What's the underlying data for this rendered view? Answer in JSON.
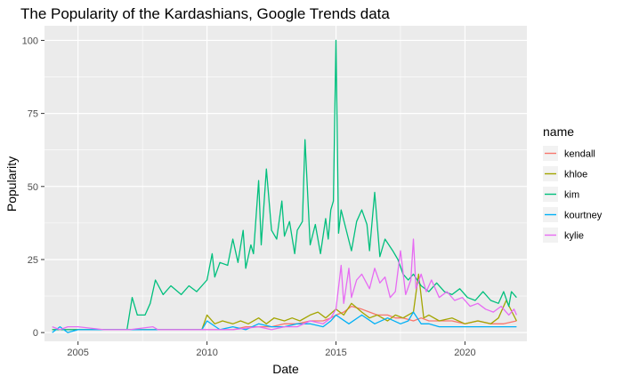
{
  "chart_data": {
    "type": "line",
    "title": "The Popularity of the Kardashians, Google Trends data",
    "xlabel": "Date",
    "ylabel": "Popularity",
    "xlim": [
      2003.7,
      2022.4
    ],
    "ylim": [
      -3,
      105
    ],
    "x_ticks": [
      2005,
      2010,
      2015,
      2020
    ],
    "y_ticks": [
      0,
      25,
      50,
      75,
      100
    ],
    "grid": true,
    "legend": {
      "title": "name",
      "position": "right"
    },
    "colors": {
      "panel_bg": "#ebebeb",
      "grid": "#ffffff",
      "kendall": "#F8766D",
      "khloe": "#A3A500",
      "kim": "#00BF7D",
      "kourtney": "#00B0F6",
      "kylie": "#E76BF3"
    },
    "series": [
      {
        "name": "kendall",
        "color": "#F8766D",
        "x": [
          2004.0,
          2004.5,
          2005.0,
          2006.0,
          2007.0,
          2008.0,
          2009.0,
          2010.0,
          2010.5,
          2011.0,
          2011.5,
          2012.0,
          2012.5,
          2013.0,
          2013.5,
          2014.0,
          2014.5,
          2014.8,
          2015.0,
          2015.3,
          2015.6,
          2016.0,
          2016.3,
          2016.6,
          2017.0,
          2017.3,
          2017.6,
          2018.0,
          2018.3,
          2018.6,
          2019.0,
          2019.5,
          2020.0,
          2020.5,
          2021.0,
          2021.5,
          2022.0
        ],
        "y": [
          1,
          1,
          1,
          1,
          1,
          1,
          1,
          1,
          1,
          1,
          2,
          2,
          2,
          3,
          3,
          4,
          4,
          5,
          6,
          7,
          9,
          8,
          7,
          6,
          6,
          5,
          5,
          4,
          5,
          4,
          4,
          4,
          3,
          4,
          3,
          3,
          4
        ]
      },
      {
        "name": "khloe",
        "color": "#A3A500",
        "x": [
          2004.0,
          2004.5,
          2005.0,
          2006.0,
          2007.0,
          2008.0,
          2009.0,
          2009.8,
          2010.0,
          2010.3,
          2010.6,
          2011.0,
          2011.3,
          2011.6,
          2012.0,
          2012.3,
          2012.6,
          2013.0,
          2013.3,
          2013.6,
          2014.0,
          2014.3,
          2014.6,
          2015.0,
          2015.3,
          2015.6,
          2016.0,
          2016.3,
          2016.6,
          2017.0,
          2017.3,
          2017.6,
          2018.0,
          2018.2,
          2018.4,
          2018.6,
          2019.0,
          2019.5,
          2020.0,
          2020.5,
          2021.0,
          2021.3,
          2021.6,
          2022.0
        ],
        "y": [
          1,
          1,
          1,
          1,
          1,
          1,
          1,
          1,
          6,
          3,
          4,
          3,
          4,
          3,
          5,
          3,
          5,
          4,
          5,
          4,
          6,
          7,
          5,
          8,
          6,
          10,
          7,
          5,
          6,
          4,
          6,
          5,
          7,
          20,
          5,
          6,
          4,
          5,
          3,
          4,
          3,
          5,
          11,
          4
        ]
      },
      {
        "name": "kim",
        "color": "#00BF7D",
        "x": [
          2004.0,
          2004.5,
          2005.0,
          2006.0,
          2006.9,
          2007.1,
          2007.3,
          2007.6,
          2007.8,
          2008.0,
          2008.3,
          2008.6,
          2009.0,
          2009.3,
          2009.6,
          2010.0,
          2010.2,
          2010.3,
          2010.5,
          2010.8,
          2011.0,
          2011.2,
          2011.4,
          2011.5,
          2011.7,
          2011.8,
          2012.0,
          2012.1,
          2012.3,
          2012.5,
          2012.7,
          2012.9,
          2013.0,
          2013.2,
          2013.4,
          2013.5,
          2013.7,
          2013.8,
          2014.0,
          2014.2,
          2014.4,
          2014.6,
          2014.7,
          2014.8,
          2014.9,
          2015.0,
          2015.1,
          2015.2,
          2015.4,
          2015.6,
          2015.8,
          2016.0,
          2016.2,
          2016.3,
          2016.5,
          2016.7,
          2016.9,
          2017.2,
          2017.4,
          2017.6,
          2017.8,
          2018.0,
          2018.3,
          2018.6,
          2018.9,
          2019.2,
          2019.5,
          2019.8,
          2020.1,
          2020.4,
          2020.7,
          2021.0,
          2021.3,
          2021.5,
          2021.7,
          2021.8,
          2022.0
        ],
        "y": [
          1,
          1,
          1,
          1,
          1,
          12,
          6,
          6,
          10,
          18,
          13,
          16,
          13,
          16,
          14,
          18,
          27,
          19,
          24,
          23,
          32,
          24,
          35,
          22,
          30,
          27,
          52,
          30,
          56,
          35,
          32,
          45,
          33,
          38,
          27,
          35,
          38,
          66,
          30,
          37,
          27,
          39,
          32,
          42,
          45,
          100,
          34,
          42,
          35,
          28,
          38,
          42,
          37,
          28,
          48,
          26,
          32,
          28,
          25,
          20,
          18,
          20,
          16,
          14,
          17,
          14,
          13,
          15,
          12,
          11,
          14,
          11,
          10,
          14,
          9,
          14,
          12
        ]
      },
      {
        "name": "kourtney",
        "color": "#00B0F6",
        "x": [
          2004.0,
          2004.3,
          2004.6,
          2005.0,
          2006.0,
          2007.0,
          2008.0,
          2009.0,
          2009.8,
          2010.0,
          2010.5,
          2011.0,
          2011.5,
          2012.0,
          2012.5,
          2013.0,
          2013.5,
          2014.0,
          2014.5,
          2014.8,
          2015.0,
          2015.5,
          2016.0,
          2016.5,
          2017.0,
          2017.5,
          2017.8,
          2018.0,
          2018.3,
          2018.6,
          2019.0,
          2019.5,
          2020.0,
          2020.5,
          2021.0,
          2021.5,
          2022.0
        ],
        "y": [
          0,
          2,
          0,
          1,
          1,
          1,
          1,
          1,
          1,
          4,
          1,
          2,
          1,
          3,
          2,
          2,
          3,
          3,
          2,
          4,
          6,
          3,
          6,
          3,
          5,
          3,
          4,
          7,
          3,
          3,
          2,
          2,
          2,
          2,
          2,
          2,
          2
        ]
      },
      {
        "name": "kylie",
        "color": "#E76BF3",
        "x": [
          2004.0,
          2004.3,
          2004.6,
          2005.0,
          2006.0,
          2007.0,
          2007.9,
          2008.1,
          2009.0,
          2010.0,
          2011.0,
          2012.0,
          2012.5,
          2013.0,
          2013.5,
          2014.0,
          2014.5,
          2014.8,
          2015.0,
          2015.2,
          2015.3,
          2015.5,
          2015.6,
          2015.8,
          2016.0,
          2016.3,
          2016.5,
          2016.7,
          2016.9,
          2017.1,
          2017.3,
          2017.5,
          2017.7,
          2017.9,
          2018.0,
          2018.1,
          2018.3,
          2018.5,
          2018.7,
          2019.0,
          2019.3,
          2019.6,
          2019.9,
          2020.2,
          2020.5,
          2020.8,
          2021.1,
          2021.4,
          2021.7,
          2021.9,
          2022.0
        ],
        "y": [
          2,
          1,
          2,
          2,
          1,
          1,
          2,
          1,
          1,
          1,
          1,
          2,
          1,
          2,
          2,
          4,
          3,
          5,
          8,
          23,
          10,
          22,
          12,
          18,
          20,
          15,
          22,
          17,
          19,
          12,
          14,
          28,
          13,
          18,
          32,
          15,
          20,
          14,
          18,
          12,
          14,
          11,
          12,
          9,
          10,
          8,
          7,
          9,
          6,
          8,
          6
        ]
      }
    ]
  }
}
